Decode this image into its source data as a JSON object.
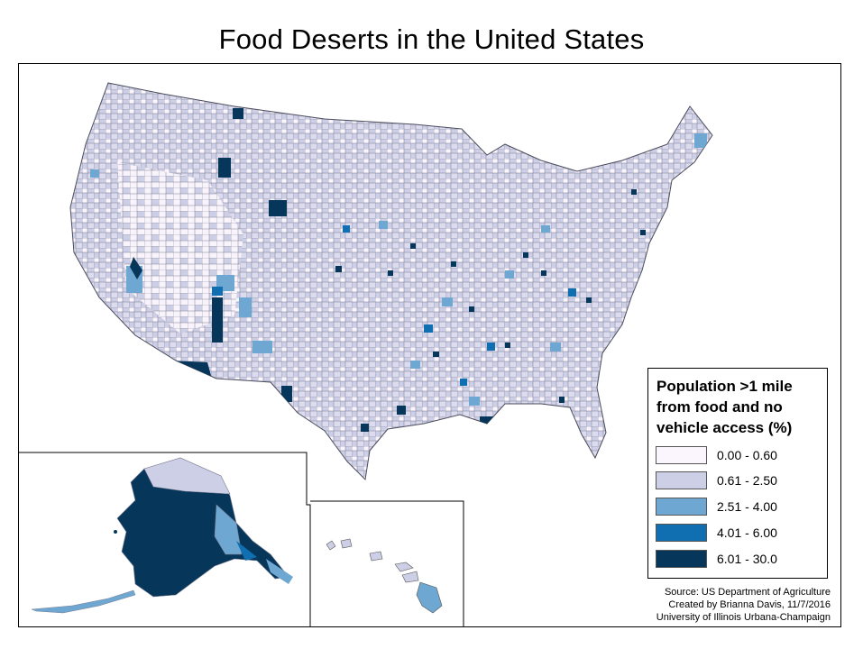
{
  "title": "Food Deserts in the United States",
  "legend": {
    "title_lines": [
      "Population >1 mile",
      "from food and no",
      "vehicle access (%)"
    ],
    "classes": [
      {
        "label": "0.00 - 0.60",
        "color": "#fbf5fd"
      },
      {
        "label": "0.61 - 2.50",
        "color": "#cdcfe6"
      },
      {
        "label": "2.51 - 4.00",
        "color": "#6ea7d1"
      },
      {
        "label": "4.01 - 6.00",
        "color": "#0f6fb1"
      },
      {
        "label": "6.01 - 30.0",
        "color": "#06365a"
      }
    ]
  },
  "source": {
    "line1": "Source: US Department of Agriculture",
    "line2": "Created by Brianna Davis, 11/7/2016",
    "line3": "University of Illinois Urbana-Champaign"
  },
  "colors": {
    "county_border": "#6e7080",
    "frame": "#000000"
  }
}
